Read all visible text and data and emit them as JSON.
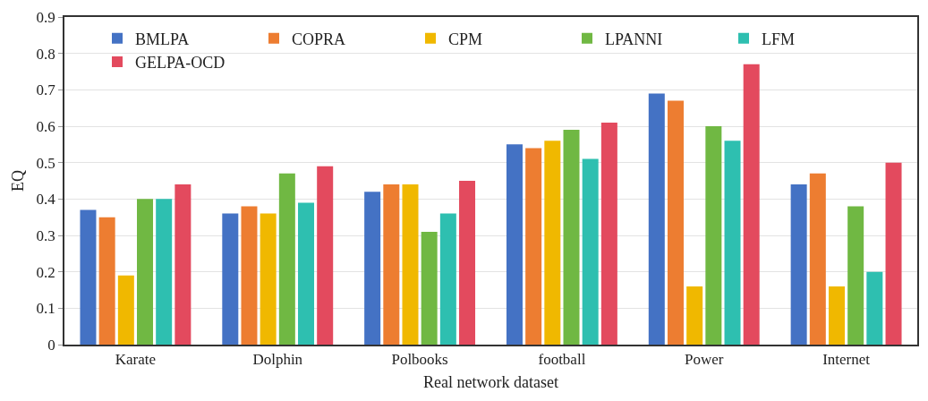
{
  "chart_data": {
    "type": "bar",
    "xlabel": "Real network dataset",
    "ylabel": "EQ",
    "categories": [
      "Karate",
      "Dolphin",
      "Polbooks",
      "football",
      "Power",
      "Internet"
    ],
    "series": [
      {
        "name": "BMLPA",
        "color": "#4472c4",
        "values": [
          0.37,
          0.36,
          0.42,
          0.55,
          0.69,
          0.44
        ]
      },
      {
        "name": "COPRA",
        "color": "#ed7d31",
        "values": [
          0.35,
          0.38,
          0.44,
          0.54,
          0.67,
          0.47
        ]
      },
      {
        "name": "CPM",
        "color": "#f0b800",
        "values": [
          0.19,
          0.36,
          0.44,
          0.56,
          0.16,
          0.16
        ]
      },
      {
        "name": "LPANNI",
        "color": "#70b843",
        "values": [
          0.4,
          0.47,
          0.31,
          0.59,
          0.6,
          0.38
        ]
      },
      {
        "name": "LFM",
        "color": "#2ebfb0",
        "values": [
          0.4,
          0.39,
          0.36,
          0.51,
          0.56,
          0.2
        ]
      },
      {
        "name": "GELPA-OCD",
        "color": "#e34a5e",
        "values": [
          0.44,
          0.49,
          0.45,
          0.61,
          0.77,
          0.5
        ]
      }
    ],
    "ylim": [
      0,
      0.9
    ],
    "yticks": [
      0,
      0.1,
      0.2,
      0.3,
      0.4,
      0.5,
      0.6,
      0.7,
      0.8,
      0.9
    ],
    "grid": "y",
    "legend": "top"
  }
}
